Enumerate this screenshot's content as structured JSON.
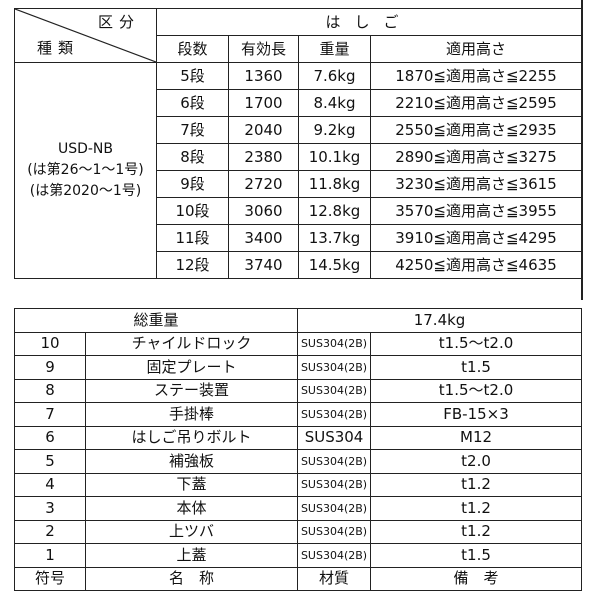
{
  "upper": {
    "corner_top": "区分",
    "corner_bottom": "種類",
    "group_header": "はしご",
    "columns": [
      "段数",
      "有効長",
      "重量",
      "適用高さ"
    ],
    "type_lines": [
      "USD-NB",
      "(は第26～1～1号)",
      "(は第2020～1号)"
    ],
    "rows": [
      [
        "5段",
        "1360",
        "7.6kg",
        "1870≦適用高さ≦2255"
      ],
      [
        "6段",
        "1700",
        "8.4kg",
        "2210≦適用高さ≦2595"
      ],
      [
        "7段",
        "2040",
        "9.2kg",
        "2550≦適用高さ≦2935"
      ],
      [
        "8段",
        "2380",
        "10.1kg",
        "2890≦適用高さ≦3275"
      ],
      [
        "9段",
        "2720",
        "11.8kg",
        "3230≦適用高さ≦3615"
      ],
      [
        "10段",
        "3060",
        "12.8kg",
        "3570≦適用高さ≦3955"
      ],
      [
        "11段",
        "3400",
        "13.7kg",
        "3910≦適用高さ≦4295"
      ],
      [
        "12段",
        "3740",
        "14.5kg",
        "4250≦適用高さ≦4635"
      ]
    ]
  },
  "lower": {
    "total_label": "総重量",
    "total_value": "17.4kg",
    "rows": [
      [
        "10",
        "チャイルドロック",
        "SUS304(2B)",
        "t1.5～t2.0"
      ],
      [
        "9",
        "固定プレート",
        "SUS304(2B)",
        "t1.5"
      ],
      [
        "8",
        "ステー装置",
        "SUS304(2B)",
        "t1.5～t2.0"
      ],
      [
        "7",
        "手掛棒",
        "SUS304(2B)",
        "FB-15×3"
      ],
      [
        "6",
        "はしご吊りボルト",
        "SUS304",
        "M12"
      ],
      [
        "5",
        "補強板",
        "SUS304(2B)",
        "t2.0"
      ],
      [
        "4",
        "下蓋",
        "SUS304(2B)",
        "t1.2"
      ],
      [
        "3",
        "本体",
        "SUS304(2B)",
        "t1.2"
      ],
      [
        "2",
        "上ツバ",
        "SUS304(2B)",
        "t1.2"
      ],
      [
        "1",
        "上蓋",
        "SUS304(2B)",
        "t1.5"
      ]
    ],
    "footer": [
      "符号",
      "名　称",
      "材質",
      "備　考"
    ]
  }
}
